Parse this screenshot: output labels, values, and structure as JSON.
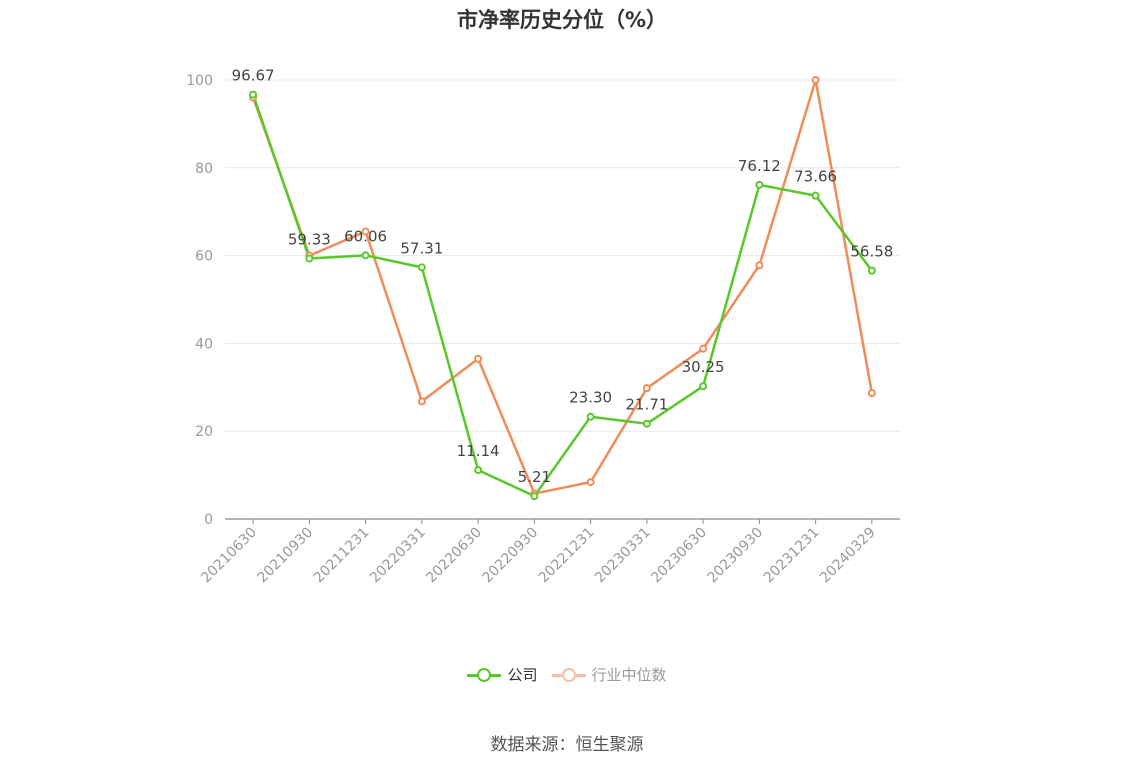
{
  "chart_data": {
    "type": "line",
    "title": "市净率历史分位（%）",
    "categories": [
      "20210630",
      "20210930",
      "20211231",
      "20220331",
      "20220630",
      "20220930",
      "20221231",
      "20230331",
      "20230630",
      "20230930",
      "20231231",
      "20240329"
    ],
    "ylim": [
      0,
      100
    ],
    "yticks": [
      0,
      20,
      40,
      60,
      80,
      100
    ],
    "grid": true,
    "legend_position": "bottom-center",
    "series": [
      {
        "name": "公司",
        "color": "#5ac72a",
        "values": [
          96.67,
          59.33,
          60.06,
          57.31,
          11.14,
          5.21,
          23.3,
          21.71,
          30.25,
          76.12,
          73.66,
          56.58
        ],
        "labels": [
          "96.67",
          "59.33",
          "60.06",
          "57.31",
          "11.14",
          "5.21",
          "23.30",
          "21.71",
          "30.25",
          "76.12",
          "73.66",
          "56.58"
        ]
      },
      {
        "name": "行业中位数",
        "color": "#f08c5a",
        "values": [
          96.0,
          60.0,
          65.5,
          26.8,
          36.5,
          5.8,
          8.4,
          29.8,
          38.8,
          57.8,
          100.0,
          28.7
        ]
      }
    ]
  },
  "legend": {
    "company_label": "公司",
    "industry_label": "行业中位数",
    "company_color": "#5ac72a",
    "industry_color": "#f9bea6"
  },
  "source": "数据来源：恒生聚源"
}
